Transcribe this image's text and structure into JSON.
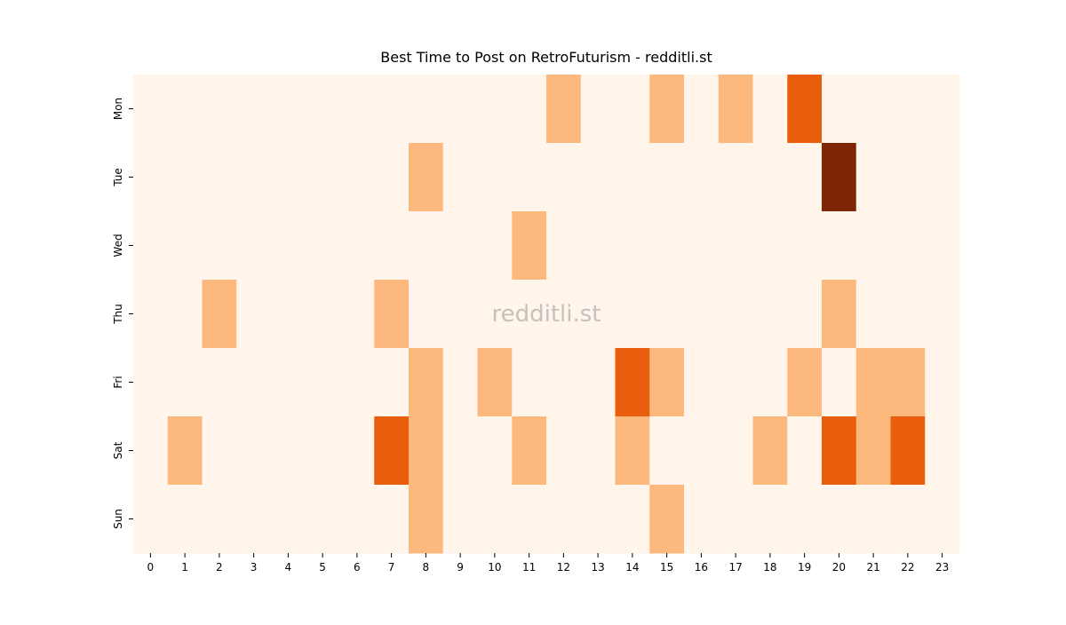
{
  "chart_data": {
    "type": "heatmap",
    "title": "Best Time to Post on RetroFuturism - redditli.st",
    "watermark": "redditli.st",
    "x": [
      0,
      1,
      2,
      3,
      4,
      5,
      6,
      7,
      8,
      9,
      10,
      11,
      12,
      13,
      14,
      15,
      16,
      17,
      18,
      19,
      20,
      21,
      22,
      23
    ],
    "y": [
      "Mon",
      "Tue",
      "Wed",
      "Thu",
      "Fri",
      "Sat",
      "Sun"
    ],
    "values": [
      [
        0,
        0,
        0,
        0,
        0,
        0,
        0,
        0,
        0,
        0,
        0,
        0,
        1,
        0,
        0,
        1,
        0,
        1,
        0,
        2,
        0,
        0,
        0,
        0
      ],
      [
        0,
        0,
        0,
        0,
        0,
        0,
        0,
        0,
        1,
        0,
        0,
        0,
        0,
        0,
        0,
        0,
        0,
        0,
        0,
        0,
        3,
        0,
        0,
        0
      ],
      [
        0,
        0,
        0,
        0,
        0,
        0,
        0,
        0,
        0,
        0,
        0,
        1,
        0,
        0,
        0,
        0,
        0,
        0,
        0,
        0,
        0,
        0,
        0,
        0
      ],
      [
        0,
        0,
        1,
        0,
        0,
        0,
        0,
        1,
        0,
        0,
        0,
        0,
        0,
        0,
        0,
        0,
        0,
        0,
        0,
        0,
        1,
        0,
        0,
        0
      ],
      [
        0,
        0,
        0,
        0,
        0,
        0,
        0,
        0,
        1,
        0,
        1,
        0,
        0,
        0,
        2,
        1,
        0,
        0,
        0,
        1,
        0,
        1,
        1,
        0
      ],
      [
        0,
        1,
        0,
        0,
        0,
        0,
        0,
        2,
        1,
        0,
        0,
        1,
        0,
        0,
        1,
        0,
        0,
        0,
        1,
        0,
        2,
        1,
        2,
        0
      ],
      [
        0,
        0,
        0,
        0,
        0,
        0,
        0,
        0,
        1,
        0,
        0,
        0,
        0,
        0,
        0,
        1,
        0,
        0,
        0,
        0,
        0,
        0,
        0,
        0
      ]
    ],
    "colors": [
      "#fff5eb",
      "#fdb97d",
      "#e95e0d",
      "#7f2704"
    ]
  }
}
